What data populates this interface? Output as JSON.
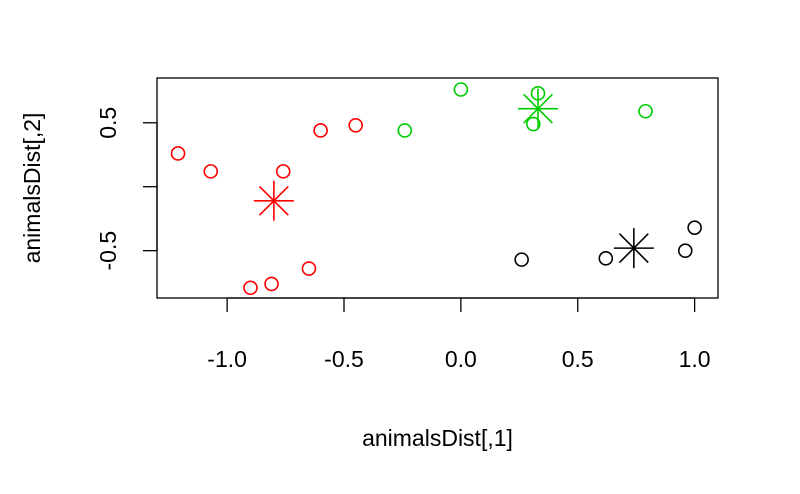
{
  "chart_data": {
    "type": "scatter",
    "title": "",
    "xlabel": "animalsDist[,1]",
    "ylabel": "animalsDist[,2]",
    "xlim": [
      -1.3,
      1.1
    ],
    "ylim": [
      -0.87,
      0.85
    ],
    "x_ticks": [
      -1.0,
      -0.5,
      0.0,
      0.5,
      1.0
    ],
    "x_tick_labels": [
      "-1.0",
      "-0.5",
      "0.0",
      "0.5",
      "1.0"
    ],
    "y_ticks": [
      -0.5,
      0.0,
      0.5
    ],
    "y_tick_labels": [
      "-0.5",
      "",
      "0.5"
    ],
    "grid": false,
    "series": [
      {
        "color": "#ff0000",
        "marker": "circle",
        "points": [
          {
            "x": -1.21,
            "y": 0.26
          },
          {
            "x": -1.07,
            "y": 0.12
          },
          {
            "x": -0.76,
            "y": 0.12
          },
          {
            "x": -0.6,
            "y": 0.44
          },
          {
            "x": -0.45,
            "y": 0.48
          },
          {
            "x": -0.65,
            "y": -0.64
          },
          {
            "x": -0.81,
            "y": -0.76
          },
          {
            "x": -0.9,
            "y": -0.79
          }
        ],
        "center": {
          "x": -0.8,
          "y": -0.11
        }
      },
      {
        "color": "#00cd00",
        "marker": "circle",
        "points": [
          {
            "x": 0.0,
            "y": 0.76
          },
          {
            "x": -0.24,
            "y": 0.44
          },
          {
            "x": 0.33,
            "y": 0.73
          },
          {
            "x": 0.31,
            "y": 0.49
          },
          {
            "x": 0.79,
            "y": 0.59
          }
        ],
        "center": {
          "x": 0.33,
          "y": 0.61
        }
      },
      {
        "color": "#000000",
        "marker": "circle",
        "points": [
          {
            "x": 0.26,
            "y": -0.57
          },
          {
            "x": 0.62,
            "y": -0.56
          },
          {
            "x": 0.96,
            "y": -0.5
          },
          {
            "x": 1.0,
            "y": -0.32
          }
        ],
        "center": {
          "x": 0.74,
          "y": -0.48
        }
      }
    ]
  }
}
